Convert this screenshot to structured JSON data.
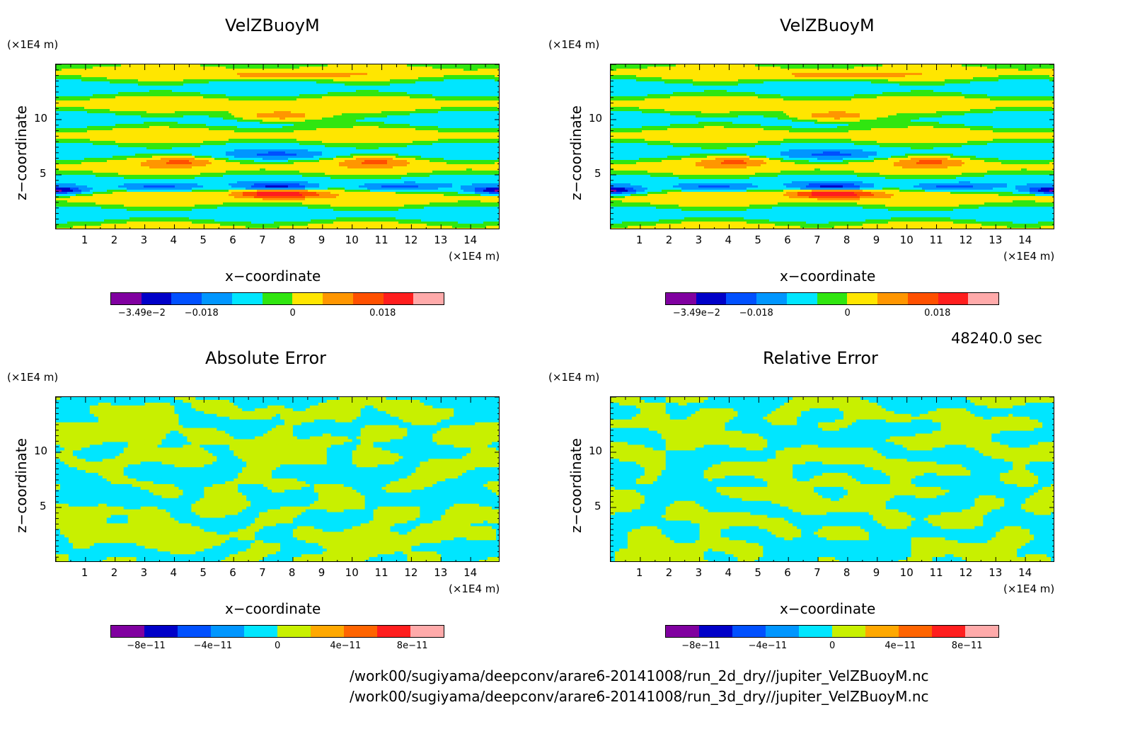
{
  "time_label": "48240.0 sec",
  "footer": {
    "file1": "/work00/sugiyama/deepconv/arare6-20141008/run_2d_dry//jupiter_VelZBuoyM.nc",
    "file2": "/work00/sugiyama/deepconv/arare6-20141008/run_3d_dry//jupiter_VelZBuoyM.nc"
  },
  "colors": {
    "main": [
      "#8000a0",
      "#0000c8",
      "#0050ff",
      "#0096ff",
      "#00e6ff",
      "#30e610",
      "#ffe600",
      "#ff9600",
      "#ff5000",
      "#ff1e1e",
      "#ffaaaa"
    ],
    "error": [
      "#8000a0",
      "#0000c8",
      "#0050ff",
      "#0096ff",
      "#00e6ff",
      "#c8f000",
      "#ffa800",
      "#ff6400",
      "#ff1e1e",
      "#ffaaaa"
    ]
  },
  "panels": [
    {
      "title": "VelZBuoyM",
      "yunit": "(×1E4 m)",
      "xunit": "(×1E4 m)",
      "xlabel": "x−coordinate",
      "ylabel": "z−coordinate",
      "cb_ticks": [
        "−3.49e−2",
        "−0.018",
        "0",
        "0.018"
      ]
    },
    {
      "title": "VelZBuoyM",
      "yunit": "(×1E4 m)",
      "xunit": "(×1E4 m)",
      "xlabel": "x−coordinate",
      "ylabel": "z−coordinate",
      "cb_ticks": [
        "−3.49e−2",
        "−0.018",
        "0",
        "0.018"
      ]
    },
    {
      "title": "Absolute Error",
      "yunit": "(×1E4 m)",
      "xunit": "(×1E4 m)",
      "xlabel": "x−coordinate",
      "ylabel": "z−coordinate",
      "cb_ticks": [
        "−8e−11",
        "−4e−11",
        "0",
        "4e−11",
        "8e−11"
      ]
    },
    {
      "title": "Relative Error",
      "yunit": "(×1E4 m)",
      "xunit": "(×1E4 m)",
      "xlabel": "x−coordinate",
      "ylabel": "z−coordinate",
      "cb_ticks": [
        "−8e−11",
        "−4e−11",
        "0",
        "4e−11",
        "8e−11"
      ]
    }
  ],
  "chart_data": [
    {
      "type": "heatmap",
      "title": "VelZBuoyM",
      "xlabel": "x−coordinate",
      "ylabel": "z−coordinate",
      "x_unit": "(×1E4 m)",
      "y_unit": "(×1E4 m)",
      "xlim": [
        0,
        15
      ],
      "ylim": [
        0,
        15
      ],
      "x_ticks": [
        "1",
        "2",
        "3",
        "4",
        "5",
        "6",
        "7",
        "8",
        "9",
        "10",
        "11",
        "12",
        "13",
        "14"
      ],
      "y_ticks": [
        "5",
        "10"
      ],
      "colorbar_ticks": [
        "−3.49e−2",
        "−0.018",
        "0",
        "0.018"
      ]
    },
    {
      "type": "heatmap",
      "title": "VelZBuoyM",
      "xlabel": "x−coordinate",
      "ylabel": "z−coordinate",
      "x_unit": "(×1E4 m)",
      "y_unit": "(×1E4 m)",
      "xlim": [
        0,
        15
      ],
      "ylim": [
        0,
        15
      ],
      "x_ticks": [
        "1",
        "2",
        "3",
        "4",
        "5",
        "6",
        "7",
        "8",
        "9",
        "10",
        "11",
        "12",
        "13",
        "14"
      ],
      "y_ticks": [
        "5",
        "10"
      ],
      "colorbar_ticks": [
        "−3.49e−2",
        "−0.018",
        "0",
        "0.018"
      ]
    },
    {
      "type": "heatmap",
      "title": "Absolute Error",
      "xlabel": "x−coordinate",
      "ylabel": "z−coordinate",
      "x_unit": "(×1E4 m)",
      "y_unit": "(×1E4 m)",
      "xlim": [
        0,
        15
      ],
      "ylim": [
        0,
        15
      ],
      "x_ticks": [
        "1",
        "2",
        "3",
        "4",
        "5",
        "6",
        "7",
        "8",
        "9",
        "10",
        "11",
        "12",
        "13",
        "14"
      ],
      "y_ticks": [
        "5",
        "10"
      ],
      "colorbar_ticks": [
        "−8e−11",
        "−4e−11",
        "0",
        "4e−11",
        "8e−11"
      ]
    },
    {
      "type": "heatmap",
      "title": "Relative Error",
      "xlabel": "x−coordinate",
      "ylabel": "z−coordinate",
      "x_unit": "(×1E4 m)",
      "y_unit": "(×1E4 m)",
      "xlim": [
        0,
        15
      ],
      "ylim": [
        0,
        15
      ],
      "x_ticks": [
        "1",
        "2",
        "3",
        "4",
        "5",
        "6",
        "7",
        "8",
        "9",
        "10",
        "11",
        "12",
        "13",
        "14"
      ],
      "y_ticks": [
        "5",
        "10"
      ],
      "colorbar_ticks": [
        "−8e−11",
        "−4e−11",
        "0",
        "4e−11",
        "8e−11"
      ]
    }
  ]
}
